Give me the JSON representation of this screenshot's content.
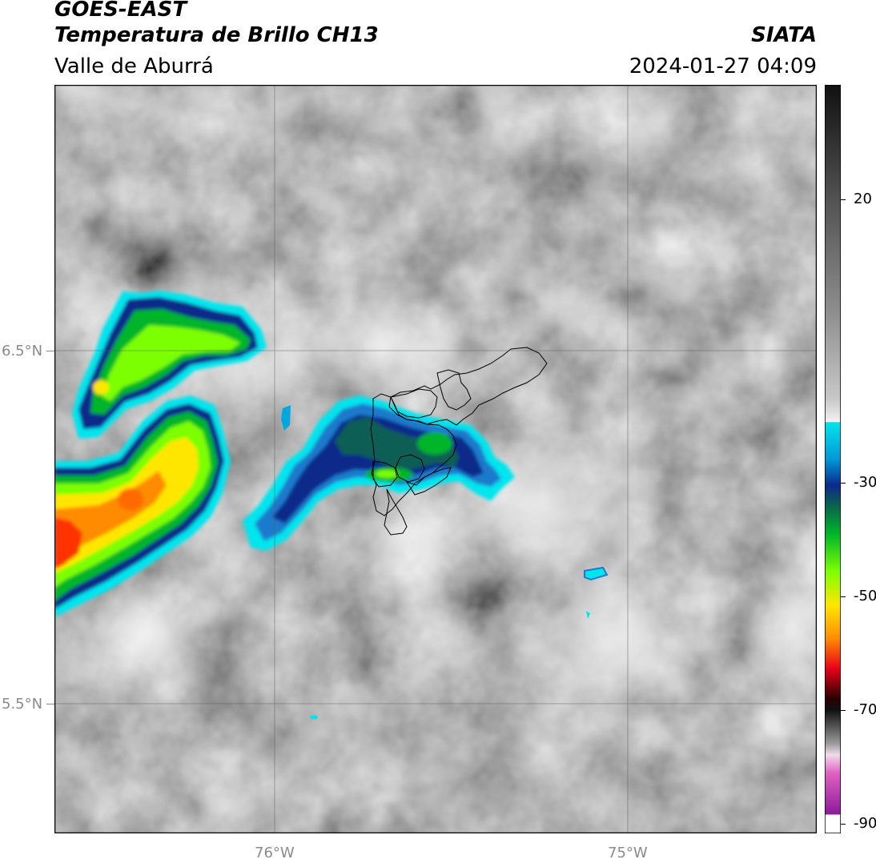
{
  "header": {
    "satellite": "GOES-EAST",
    "product": "Temperatura de Brillo CH13",
    "region": "Valle de Aburrá",
    "agency": "SIATA",
    "datetime": "2024-01-27 04:09"
  },
  "map": {
    "lat_labels": [
      "6.5°N",
      "5.5°N"
    ],
    "lon_labels": [
      "76°W",
      "75°W"
    ]
  },
  "colorbar": {
    "ticks": [
      "20",
      "-30",
      "-50",
      "-70",
      "-90"
    ],
    "colors": {
      "gray_warm": "#1a1a1a",
      "gray_mid": "#8c8c8c",
      "white": "#f2f2f2",
      "cyan": "#00e5ee",
      "blue": "#0b2a8a",
      "green": "#00b52a",
      "lime": "#7cff00",
      "yellow": "#ffe600",
      "orange": "#ff8c00",
      "red": "#e8001a",
      "dark_red": "#2a0000",
      "pink": "#e040b0",
      "purple": "#8a1a9a"
    }
  }
}
